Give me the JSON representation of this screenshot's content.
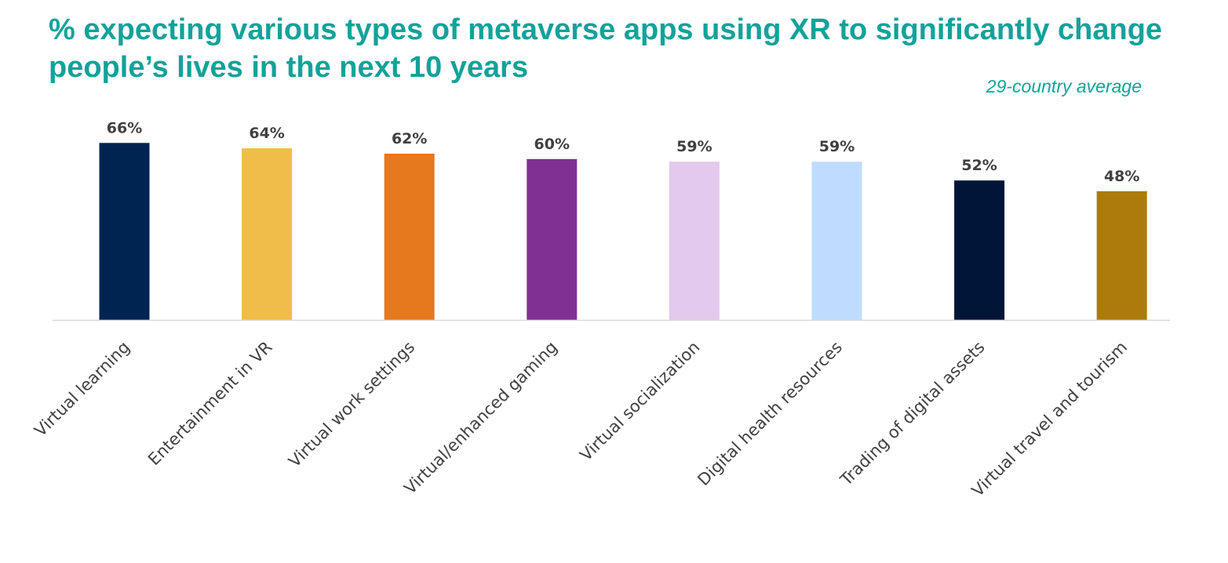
{
  "title": "% expecting various types of metaverse apps using XR to significantly change people’s lives in the next 10 years",
  "subtitle": "29-country average",
  "chart_data": {
    "type": "bar",
    "title": "% expecting various types of metaverse apps using XR to significantly change people’s lives in the next 10 years",
    "subtitle": "29-country average",
    "xlabel": "",
    "ylabel": "",
    "ylim": [
      0,
      70
    ],
    "grid": false,
    "legend": "none",
    "categories": [
      "Virtual learning",
      "Entertainment in VR",
      "Virtual work settings",
      "Virtual/enhanced gaming",
      "Virtual socialization",
      "Digital health resources",
      "Trading of digital assets",
      "Virtual travel and tourism"
    ],
    "values": [
      66,
      64,
      62,
      60,
      59,
      59,
      52,
      48
    ],
    "value_labels": [
      "66%",
      "64%",
      "62%",
      "60%",
      "59%",
      "59%",
      "52%",
      "48%"
    ],
    "colors": [
      "#002452",
      "#f0bc4a",
      "#e6781e",
      "#7e3193",
      "#e3c9ec",
      "#bfdcfe",
      "#001638",
      "#ad7b0c"
    ]
  }
}
